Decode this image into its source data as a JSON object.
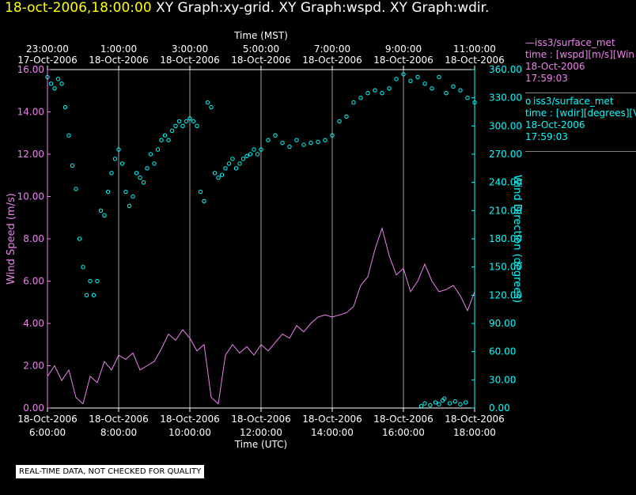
{
  "header": {
    "timestamp": "18-oct-2006,18:00:00",
    "titles": " XY Graph:xy-grid.  XY Graph:wspd.  XY Graph:wdir."
  },
  "legend": {
    "series1": {
      "name": "iss3/surface_met",
      "line": "time : [wspd][m/s][Win",
      "date": "18-Oct-2006",
      "time": "17:59:03"
    },
    "series2": {
      "name": "iss3/surface_met",
      "line": "time : [wdir][degrees][V",
      "date": "18-Oct-2006",
      "time": "17:59:03"
    }
  },
  "notice": "REAL-TIME DATA, NOT CHECKED FOR QUALITY",
  "colors": {
    "wspd": "#ee82ee",
    "wdir": "#00ffff",
    "grid": "#a0a0a0",
    "axis": "#ffffff"
  },
  "chart_data": {
    "type": "line",
    "top_axis_label": "Time (MST)",
    "top_ticks": [
      {
        "time": "23:00:00",
        "date": "17-Oct-2006"
      },
      {
        "time": "1:00:00",
        "date": "18-Oct-2006"
      },
      {
        "time": "3:00:00",
        "date": "18-Oct-2006"
      },
      {
        "time": "5:00:00",
        "date": "18-Oct-2006"
      },
      {
        "time": "7:00:00",
        "date": "18-Oct-2006"
      },
      {
        "time": "9:00:00",
        "date": "18-Oct-2006"
      },
      {
        "time": "11:00:00",
        "date": "18-Oct-2006"
      }
    ],
    "xlabel": "Time (UTC)",
    "bottom_ticks": [
      {
        "date": "18-Oct-2006",
        "time": "6:00:00"
      },
      {
        "date": "18-Oct-2006",
        "time": "8:00:00"
      },
      {
        "date": "18-Oct-2006",
        "time": "10:00:00"
      },
      {
        "date": "18-Oct-2006",
        "time": "12:00:00"
      },
      {
        "date": "18-Oct-2006",
        "time": "14:00:00"
      },
      {
        "date": "18-Oct-2006",
        "time": "16:00:00"
      },
      {
        "date": "18-Oct-2006",
        "time": "18:00:00"
      }
    ],
    "xlim_utc_hours": [
      6,
      18
    ],
    "ylabel_left": "Wind Speed (m/s)",
    "ylim_left": [
      0,
      16
    ],
    "yticks_left": [
      "0.00",
      "2.00",
      "4.00",
      "6.00",
      "8.00",
      "10.00",
      "12.00",
      "14.00",
      "16.00"
    ],
    "ylabel_right": "Wind Direction (degrees)",
    "ylim_right": [
      0,
      360
    ],
    "yticks_right": [
      "0.00",
      "30.00",
      "60.00",
      "90.00",
      "120.00",
      "150.00",
      "180.00",
      "210.00",
      "240.00",
      "270.00",
      "300.00",
      "330.00",
      "360.00"
    ],
    "grid": true,
    "series": [
      {
        "key": "wspd",
        "style": "line",
        "axis": "left",
        "x": [
          6.0,
          6.2,
          6.4,
          6.6,
          6.8,
          7.0,
          7.2,
          7.4,
          7.6,
          7.8,
          8.0,
          8.2,
          8.4,
          8.6,
          8.8,
          9.0,
          9.2,
          9.4,
          9.6,
          9.8,
          10.0,
          10.2,
          10.4,
          10.6,
          10.8,
          11.0,
          11.2,
          11.4,
          11.6,
          11.8,
          12.0,
          12.2,
          12.4,
          12.6,
          12.8,
          13.0,
          13.2,
          13.4,
          13.6,
          13.8,
          14.0,
          14.2,
          14.4,
          14.6,
          14.8,
          15.0,
          15.2,
          15.4,
          15.6,
          15.8,
          16.0,
          16.2,
          16.4,
          16.6,
          16.8,
          17.0,
          17.2,
          17.4,
          17.6,
          17.8,
          18.0
        ],
        "y": [
          1.5,
          2.0,
          1.3,
          1.8,
          0.5,
          0.2,
          1.5,
          1.2,
          2.2,
          1.8,
          2.5,
          2.3,
          2.6,
          1.8,
          2.0,
          2.2,
          2.8,
          3.5,
          3.2,
          3.7,
          3.3,
          2.7,
          3.0,
          0.5,
          0.2,
          2.5,
          3.0,
          2.6,
          2.9,
          2.5,
          3.0,
          2.7,
          3.1,
          3.5,
          3.3,
          3.9,
          3.6,
          4.0,
          4.3,
          4.4,
          4.3,
          4.4,
          4.5,
          4.8,
          5.8,
          6.2,
          7.5,
          8.5,
          7.2,
          6.3,
          6.6,
          5.5,
          6.0,
          6.8,
          6.0,
          5.5,
          5.6,
          5.8,
          5.3,
          4.6,
          5.5
        ]
      },
      {
        "key": "wdir",
        "style": "points",
        "axis": "right",
        "x": [
          6.0,
          6.1,
          6.2,
          6.3,
          6.4,
          6.5,
          6.6,
          6.7,
          6.8,
          6.9,
          7.0,
          7.1,
          7.2,
          7.3,
          7.4,
          7.5,
          7.6,
          7.7,
          7.8,
          7.9,
          8.0,
          8.1,
          8.2,
          8.3,
          8.4,
          8.5,
          8.6,
          8.7,
          8.8,
          8.9,
          9.0,
          9.1,
          9.2,
          9.3,
          9.4,
          9.5,
          9.6,
          9.7,
          9.8,
          9.9,
          10.0,
          10.1,
          10.2,
          10.3,
          10.4,
          10.5,
          10.6,
          10.7,
          10.8,
          10.9,
          11.0,
          11.1,
          11.2,
          11.3,
          11.4,
          11.5,
          11.6,
          11.7,
          11.8,
          11.9,
          12.0,
          12.2,
          12.4,
          12.6,
          12.8,
          13.0,
          13.2,
          13.4,
          13.6,
          13.8,
          14.0,
          14.2,
          14.4,
          14.6,
          14.8,
          15.0,
          15.2,
          15.4,
          15.6,
          15.8,
          16.0,
          16.2,
          16.4,
          16.6,
          16.8,
          17.0,
          17.2,
          17.4,
          17.6,
          17.8,
          18.0
        ],
        "y": [
          352,
          345,
          340,
          350,
          345,
          320,
          290,
          258,
          233,
          180,
          150,
          120,
          135,
          120,
          135,
          210,
          205,
          230,
          250,
          265,
          275,
          260,
          230,
          215,
          225,
          250,
          245,
          240,
          255,
          270,
          260,
          275,
          285,
          290,
          285,
          295,
          300,
          305,
          300,
          305,
          308,
          305,
          300,
          230,
          220,
          325,
          320,
          250,
          245,
          248,
          255,
          260,
          265,
          255,
          260,
          265,
          268,
          270,
          275,
          270,
          275,
          285,
          290,
          282,
          278,
          285,
          280,
          282,
          283,
          285,
          290,
          305,
          310,
          325,
          330,
          335,
          338,
          335,
          340,
          350,
          355,
          348,
          352,
          345,
          340,
          352,
          335,
          342,
          338,
          330,
          325
        ]
      },
      {
        "key": "wdir_low",
        "style": "points",
        "axis": "right",
        "x": [
          16.5,
          16.6,
          16.75,
          16.9,
          17.0,
          17.1,
          17.15,
          17.3,
          17.45,
          17.6,
          17.75
        ],
        "y": [
          2,
          5,
          3,
          6,
          4,
          8,
          10,
          5,
          7,
          4,
          6
        ]
      }
    ]
  }
}
